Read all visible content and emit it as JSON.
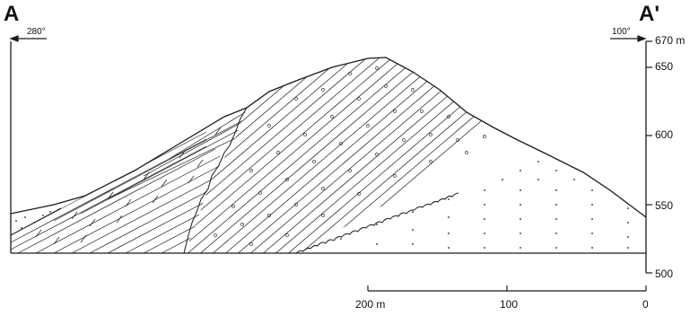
{
  "section": {
    "left_label": "A",
    "right_label": "A'",
    "left_azimuth": "280°",
    "right_azimuth": "100°",
    "elevation_ticks": [
      "670 m",
      "650",
      "600",
      "550",
      "500"
    ],
    "distance_ticks": [
      "200 m",
      "100",
      "0"
    ]
  },
  "colors": {
    "ink": "#1a1a1a",
    "paper": "#ffffff"
  }
}
